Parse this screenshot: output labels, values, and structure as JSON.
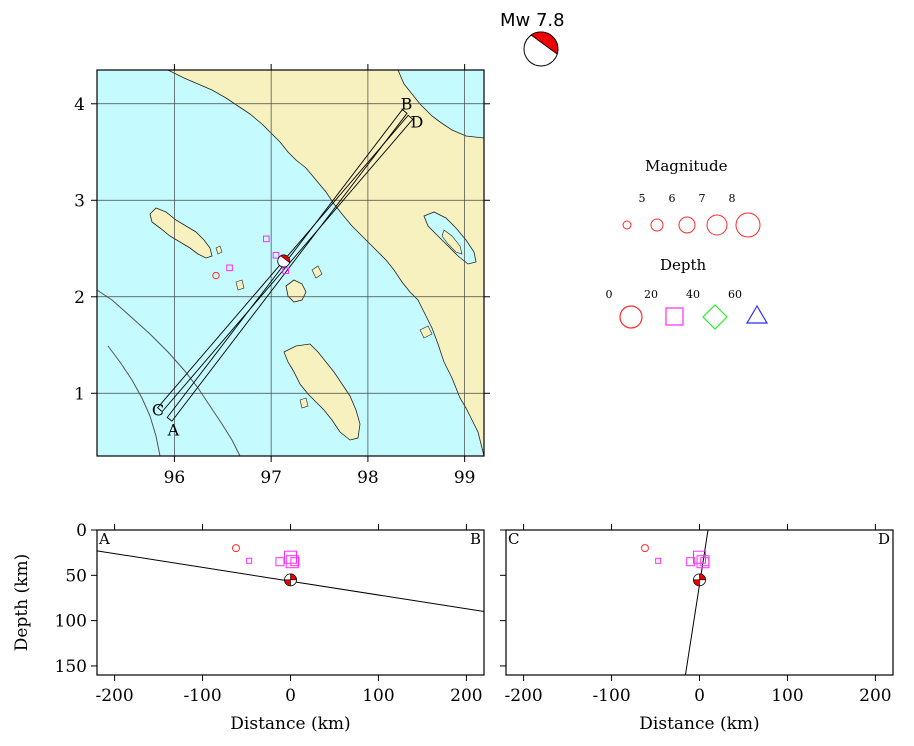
{
  "event": {
    "magnitude_label": "Mw  7.8",
    "lon": 97.13,
    "lat": 2.37,
    "depth_km": 55
  },
  "map": {
    "lon_ticks": [
      "96",
      "97",
      "98",
      "99"
    ],
    "lat_ticks": [
      "1",
      "2",
      "3",
      "4"
    ],
    "lon_range": [
      95.2,
      99.2
    ],
    "lat_range": [
      0.35,
      4.35
    ],
    "colors": {
      "sea": "#c5fafe",
      "land": "#f7f1c0",
      "grid": "#444444"
    },
    "profile_A": {
      "from_label": "A",
      "to_label": "B",
      "from": [
        95.95,
        0.73
      ],
      "to": [
        98.38,
        3.92
      ]
    },
    "profile_C": {
      "from_label": "C",
      "to_label": "D",
      "from": [
        95.85,
        0.83
      ],
      "to": [
        98.44,
        3.86
      ]
    },
    "aftershocks": [
      {
        "lon": 96.95,
        "lat": 2.6,
        "depth": 30,
        "mag": 5.0
      },
      {
        "lon": 97.05,
        "lat": 2.43,
        "depth": 30,
        "mag": 5.0
      },
      {
        "lon": 97.15,
        "lat": 2.27,
        "depth": 30,
        "mag": 5.0
      },
      {
        "lon": 96.57,
        "lat": 2.3,
        "depth": 30,
        "mag": 5.0
      },
      {
        "lon": 96.43,
        "lat": 2.22,
        "depth": 10,
        "mag": 5.0
      }
    ]
  },
  "legend": {
    "magnitude_title": "Magnitude",
    "magnitude_values": [
      "5",
      "6",
      "7",
      "8"
    ],
    "depth_title": "Depth",
    "depth_values": [
      "0",
      "20",
      "40",
      "60"
    ],
    "colors": {
      "d0": "#ff2a2a",
      "d20": "#ff2aff",
      "d40": "#2aee2a",
      "d60": "#2a2aff"
    }
  },
  "sections": [
    {
      "left_label": "A",
      "right_label": "B",
      "line": [
        [
          -220,
          23
        ],
        [
          220,
          90
        ]
      ],
      "events": [
        {
          "dist": -62,
          "depth": 20,
          "kind": "circle"
        },
        {
          "dist": -47,
          "depth": 34,
          "kind": "square-s"
        },
        {
          "dist": 0,
          "depth": 30,
          "kind": "square-l"
        },
        {
          "dist": 2,
          "depth": 35,
          "kind": "square-l"
        },
        {
          "dist": -12,
          "depth": 35,
          "kind": "square-m"
        },
        {
          "dist": 5,
          "depth": 35,
          "kind": "square-m"
        }
      ]
    },
    {
      "left_label": "C",
      "right_label": "D",
      "line": [
        [
          10,
          -2
        ],
        [
          -16,
          160
        ]
      ],
      "events": [
        {
          "dist": -62,
          "depth": 20,
          "kind": "circle"
        },
        {
          "dist": -47,
          "depth": 34,
          "kind": "square-s"
        },
        {
          "dist": 0,
          "depth": 30,
          "kind": "square-l"
        },
        {
          "dist": 4,
          "depth": 35,
          "kind": "square-l"
        },
        {
          "dist": -10,
          "depth": 35,
          "kind": "square-m"
        },
        {
          "dist": 6,
          "depth": 35,
          "kind": "square-m"
        }
      ]
    }
  ],
  "section_axes": {
    "x_ticks": [
      "-200",
      "-100",
      "0",
      "100",
      "200"
    ],
    "x_range": [
      -220,
      220
    ],
    "y_ticks": [
      "0",
      "50",
      "100",
      "150"
    ],
    "y_range": [
      0,
      160
    ],
    "xlabel": "Distance (km)",
    "ylabel": "Depth (km)"
  }
}
